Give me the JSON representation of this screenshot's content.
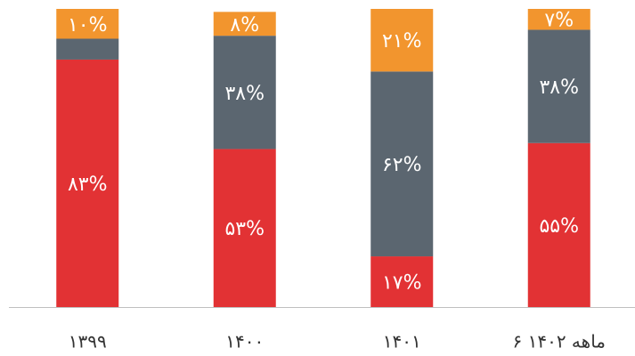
{
  "chart_data": {
    "type": "stacked_bar",
    "categories": [
      "۱۳۹۹",
      "۱۴۰۰",
      "۱۴۰۱",
      "۶ ماهه ۱۴۰۲"
    ],
    "ylim": [
      0,
      100
    ],
    "series": [
      {
        "color": "#e23234",
        "values": [
          83,
          53,
          17,
          55
        ],
        "value_labels": [
          "۸۳%",
          "۵۳%",
          "۱۷%",
          "۵۵%"
        ]
      },
      {
        "color": "#5b6670",
        "values": [
          7,
          38,
          62,
          38
        ],
        "value_labels": [
          null,
          "۳۸%",
          "۶۲%",
          "۳۸%"
        ]
      },
      {
        "color": "#f2952e",
        "values": [
          10,
          8,
          21,
          7
        ],
        "value_labels": [
          "۱۰%",
          "۸%",
          "۲۱%",
          "۷%"
        ]
      }
    ]
  }
}
